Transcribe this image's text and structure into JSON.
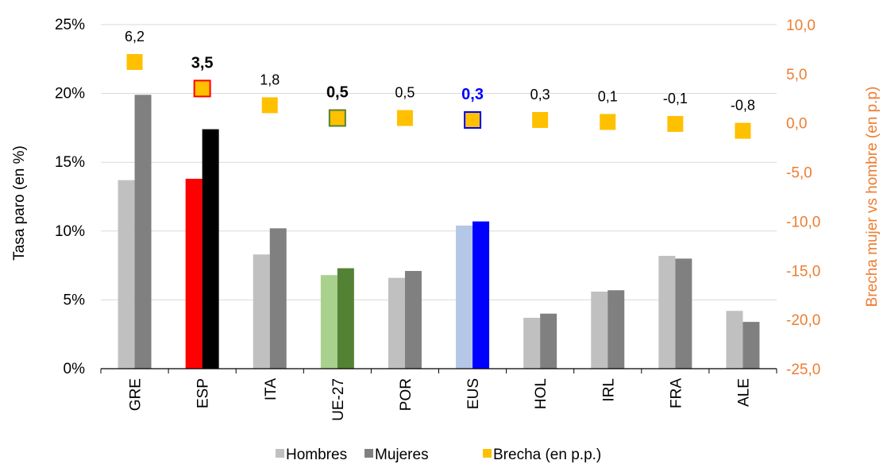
{
  "chart_data": {
    "type": "bar",
    "categories": [
      "GRE",
      "ESP",
      "ITA",
      "UE-27",
      "POR",
      "EUS",
      "HOL",
      "IRL",
      "FRA",
      "ALE"
    ],
    "series": [
      {
        "name": "Hombres",
        "axis": "left",
        "values": [
          13.7,
          13.8,
          8.3,
          6.8,
          6.6,
          10.4,
          3.7,
          5.6,
          8.2,
          4.2
        ]
      },
      {
        "name": "Mujeres",
        "axis": "left",
        "values": [
          19.9,
          17.4,
          10.2,
          7.3,
          7.1,
          10.7,
          4.0,
          5.7,
          8.0,
          3.4
        ]
      },
      {
        "name": "Brecha (en p.p.)",
        "axis": "right",
        "type": "scatter",
        "values": [
          6.2,
          3.5,
          1.8,
          0.5,
          0.5,
          0.3,
          0.3,
          0.1,
          -0.1,
          -0.8
        ]
      }
    ],
    "gap_labels": [
      "6,2",
      "3,5",
      "1,8",
      "0,5",
      "0,5",
      "0,3",
      "0,3",
      "0,1",
      "-0,1",
      "-0,8"
    ],
    "ylabel": "Tasa paro (en %)",
    "ylabel_right": "Brecha mujer vs hombre (en p.p)",
    "ylim": [
      0,
      25
    ],
    "ylim_right": [
      -25,
      10
    ],
    "yticks": [
      "0%",
      "5%",
      "10%",
      "15%",
      "20%",
      "25%"
    ],
    "yticks_right": [
      "-25,0",
      "-20,0",
      "-15,0",
      "-10,0",
      "-5,0",
      "0,0",
      "5,0",
      "10,0"
    ],
    "grid": true,
    "legend_position": "bottom",
    "legend": [
      "Hombres",
      "Mujeres",
      "Brecha (en p.p.)"
    ],
    "colors": {
      "hombres": "#c0c0c0",
      "mujeres": "#808080",
      "brecha": "#ffc000",
      "right_axis": "#ed7d31",
      "grid": "#d9d9d9",
      "axis": "#000000"
    },
    "highlights": {
      "ESP": {
        "hombres": "#ff0000",
        "mujeres": "#000000",
        "marker_border": "#ff0000",
        "label_color": "#000000",
        "label_bold": true
      },
      "UE-27": {
        "hombres": "#a9d18e",
        "mujeres": "#548235",
        "marker_border": "#548235",
        "label_color": "#000000",
        "label_bold": true
      },
      "EUS": {
        "hombres": "#b4c7e7",
        "mujeres": "#0000ff",
        "marker_border": "#0000ff",
        "label_color": "#0000ff",
        "label_bold": true
      }
    }
  }
}
